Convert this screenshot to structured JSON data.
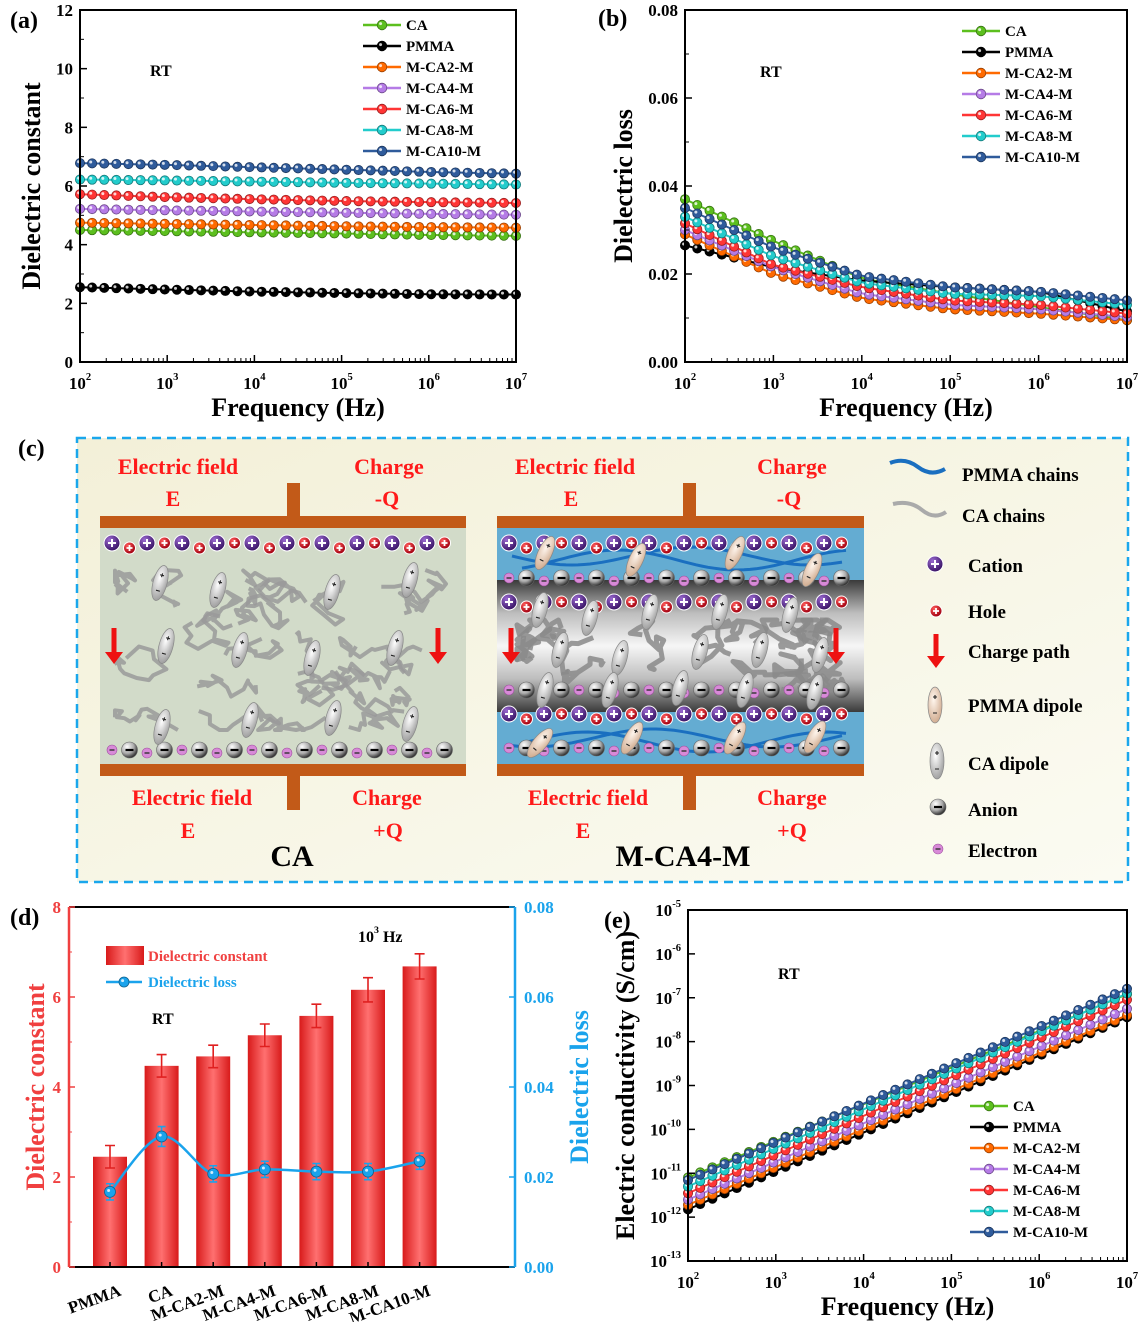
{
  "chart_data": [
    {
      "panel": "(a)",
      "type": "line",
      "xlabel": "Frequency (Hz)",
      "ylabel": "Dielectric constant",
      "annotation": "RT",
      "xscale": "log",
      "yscale": "linear",
      "xlim": [
        100,
        10000000
      ],
      "ylim": [
        0,
        12
      ],
      "xticks": [
        "10^2",
        "10^3",
        "10^4",
        "10^5",
        "10^6",
        "10^7"
      ],
      "yticks": [
        "0",
        "2",
        "4",
        "6",
        "8",
        "10",
        "12"
      ],
      "legend": "top-right",
      "grid": false,
      "x": [
        100,
        1000,
        10000,
        100000,
        1000000,
        10000000
      ],
      "series": [
        {
          "name": "CA",
          "color": "#5cbf1e",
          "values": [
            4.5,
            4.46,
            4.42,
            4.38,
            4.33,
            4.3
          ]
        },
        {
          "name": "PMMA",
          "color": "#000000",
          "values": [
            2.55,
            2.47,
            2.4,
            2.35,
            2.31,
            2.3
          ]
        },
        {
          "name": "M-CA2-M",
          "color": "#ff6a00",
          "values": [
            4.75,
            4.71,
            4.67,
            4.63,
            4.6,
            4.58
          ]
        },
        {
          "name": "M-CA4-M",
          "color": "#b57be6",
          "values": [
            5.22,
            5.17,
            5.13,
            5.09,
            5.05,
            5.02
          ]
        },
        {
          "name": "M-CA6-M",
          "color": "#ff3535",
          "values": [
            5.72,
            5.62,
            5.55,
            5.49,
            5.45,
            5.42
          ]
        },
        {
          "name": "M-CA8-M",
          "color": "#22cccc",
          "values": [
            6.22,
            6.19,
            6.15,
            6.11,
            6.08,
            6.05
          ]
        },
        {
          "name": "M-CA10-M",
          "color": "#2f5b9b",
          "values": [
            6.78,
            6.72,
            6.64,
            6.56,
            6.48,
            6.42
          ]
        }
      ]
    },
    {
      "panel": "(b)",
      "type": "line",
      "xlabel": "Frequency (Hz)",
      "ylabel": "Dielectric loss",
      "annotation": "RT",
      "xscale": "log",
      "yscale": "linear",
      "xlim": [
        100,
        10000000
      ],
      "ylim": [
        0,
        0.08
      ],
      "xticks": [
        "10^2",
        "10^3",
        "10^4",
        "10^5",
        "10^6",
        "10^7"
      ],
      "yticks": [
        "0.00",
        "0.02",
        "0.04",
        "0.06",
        "0.08"
      ],
      "legend": "top-right",
      "grid": false,
      "x": [
        100,
        1000,
        10000,
        100000,
        1000000,
        10000000
      ],
      "series": [
        {
          "name": "CA",
          "color": "#5cbf1e",
          "values": [
            0.037,
            0.0275,
            0.019,
            0.0155,
            0.0125,
            0.0095
          ]
        },
        {
          "name": "PMMA",
          "color": "#000000",
          "values": [
            0.0265,
            0.0215,
            0.0185,
            0.017,
            0.016,
            0.0115
          ]
        },
        {
          "name": "M-CA2-M",
          "color": "#ff6a00",
          "values": [
            0.029,
            0.02,
            0.0145,
            0.012,
            0.011,
            0.0095
          ]
        },
        {
          "name": "M-CA4-M",
          "color": "#b57be6",
          "values": [
            0.03,
            0.0215,
            0.0155,
            0.013,
            0.012,
            0.0102
          ]
        },
        {
          "name": "M-CA6-M",
          "color": "#ff3535",
          "values": [
            0.0315,
            0.022,
            0.017,
            0.014,
            0.013,
            0.011
          ]
        },
        {
          "name": "M-CA8-M",
          "color": "#22cccc",
          "values": [
            0.033,
            0.024,
            0.018,
            0.0155,
            0.015,
            0.013
          ]
        },
        {
          "name": "M-CA10-M",
          "color": "#2f5b9b",
          "values": [
            0.035,
            0.026,
            0.0195,
            0.017,
            0.016,
            0.014
          ]
        }
      ]
    },
    {
      "panel": "(d)",
      "type": "bar",
      "categories": [
        "PMMA",
        "CA",
        "M-CA2-M",
        "M-CA4-M",
        "M-CA6-M",
        "M-CA8-M",
        "M-CA10-M"
      ],
      "annotation": "RT",
      "frequency_label": "10^3 Hz",
      "ylabel": "Dielectric constant",
      "ylabel_right": "Dielectric loss",
      "ylim": [
        0,
        8
      ],
      "ylim_right": [
        0,
        0.08
      ],
      "yticks": [
        "0",
        "2",
        "4",
        "6",
        "8"
      ],
      "yticks_right": [
        "0.00",
        "0.02",
        "0.04",
        "0.06",
        "0.08"
      ],
      "legend": "top-left",
      "series": [
        {
          "name": "Dielectric constant",
          "type": "bar",
          "axis": "left",
          "color": "#f04040",
          "values": [
            2.45,
            4.47,
            4.68,
            5.15,
            5.58,
            6.16,
            6.68
          ],
          "errors": [
            0.25,
            0.25,
            0.25,
            0.25,
            0.26,
            0.27,
            0.28
          ]
        },
        {
          "name": "Dielectric loss",
          "type": "line",
          "axis": "right",
          "color": "#1aa3ec",
          "values": [
            0.0167,
            0.029,
            0.0207,
            0.0217,
            0.0212,
            0.0212,
            0.0235
          ],
          "errors": [
            0.0018,
            0.0022,
            0.0018,
            0.0018,
            0.0018,
            0.0018,
            0.0018
          ]
        }
      ]
    },
    {
      "panel": "(e)",
      "type": "line",
      "xlabel": "Frequency (Hz)",
      "ylabel": "Electric conductivity (S/cm)",
      "annotation": "RT",
      "xscale": "log",
      "yscale": "log",
      "xlim": [
        100,
        10000000
      ],
      "ylim": [
        1e-13,
        1e-05
      ],
      "xticks": [
        "10^2",
        "10^3",
        "10^4",
        "10^5",
        "10^6",
        "10^7"
      ],
      "yticks": [
        "10^-13",
        "10^-12",
        "10^-11",
        "10^-10",
        "10^-9",
        "10^-8",
        "10^-7",
        "10^-6",
        "10^-5"
      ],
      "legend": "bottom-right",
      "grid": false,
      "x": [
        100,
        10000000
      ],
      "series": [
        {
          "name": "CA",
          "color": "#5cbf1e",
          "values": [
            8e-12,
            1.2e-07
          ]
        },
        {
          "name": "PMMA",
          "color": "#000000",
          "values": [
            1.5e-12,
            3.6e-08
          ]
        },
        {
          "name": "M-CA2-M",
          "color": "#ff6a00",
          "values": [
            1.9e-12,
            4e-08
          ]
        },
        {
          "name": "M-CA4-M",
          "color": "#b57be6",
          "values": [
            2.5e-12,
            5.6e-08
          ]
        },
        {
          "name": "M-CA6-M",
          "color": "#ff3535",
          "values": [
            3.5e-12,
            9e-08
          ]
        },
        {
          "name": "M-CA8-M",
          "color": "#22cccc",
          "values": [
            5e-12,
            1.25e-07
          ]
        },
        {
          "name": "M-CA10-M",
          "color": "#2f5b9b",
          "values": [
            7e-12,
            1.6e-07
          ]
        }
      ]
    }
  ],
  "diagram": {
    "panel": "(c)",
    "capacitors": [
      {
        "name": "CA",
        "top_field": "Electric field",
        "top_field_symbol": "E",
        "top_charge": "Charge",
        "top_charge_symbol": "-Q",
        "bottom_field": "Electric field",
        "bottom_field_symbol": "E",
        "bottom_charge": "Charge",
        "bottom_charge_symbol": "+Q"
      },
      {
        "name": "M-CA4-M",
        "top_field": "Electric field",
        "top_field_symbol": "E",
        "top_charge": "Charge",
        "top_charge_symbol": "-Q",
        "bottom_field": "Electric field",
        "bottom_field_symbol": "E",
        "bottom_charge": "Charge",
        "bottom_charge_symbol": "+Q"
      }
    ],
    "legend": [
      {
        "label": "PMMA chains",
        "icon": "pmma-chain"
      },
      {
        "label": "CA chains",
        "icon": "ca-chain"
      },
      {
        "label": "Cation",
        "icon": "cation"
      },
      {
        "label": "Hole",
        "icon": "hole"
      },
      {
        "label": "Charge path",
        "icon": "charge-path-arrow"
      },
      {
        "label": "PMMA dipole",
        "icon": "pmma-dipole"
      },
      {
        "label": "CA dipole",
        "icon": "ca-dipole"
      },
      {
        "label": "Anion",
        "icon": "anion"
      },
      {
        "label": "Electron",
        "icon": "electron"
      }
    ],
    "colors": {
      "text": "#ff1a1a",
      "plate": "#c25a18",
      "border": "#1aa7ec",
      "pmma_layer": "#64acd2",
      "ca_layer": "#d2dbc9",
      "cation": "#5b2d8e",
      "hole": "#d0102a",
      "electron": "#d88ad8"
    }
  }
}
